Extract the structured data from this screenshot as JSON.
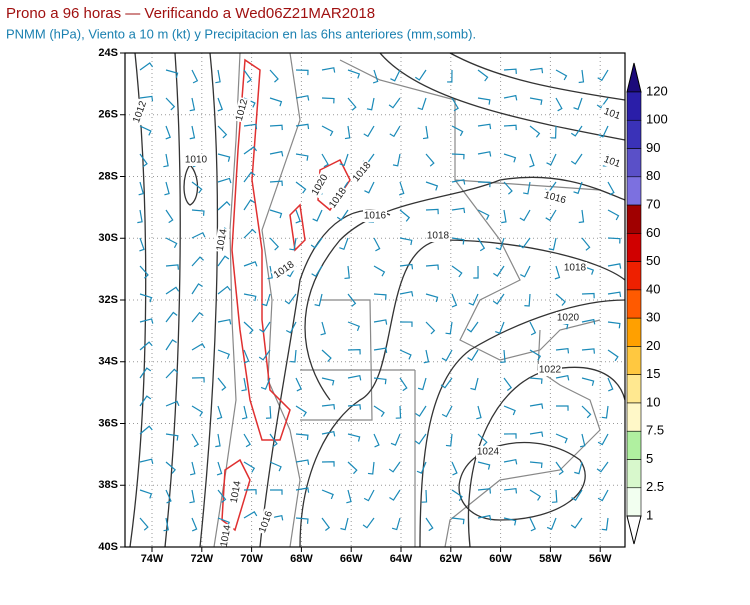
{
  "header": {
    "title": "Prono a 96 horas — Verificando a Wed06Z21MAR2018",
    "subtitle": "PNMM (hPa), Viento a 10 m (kt) y Precipitacion en las 6hs anteriores (mm,somb)."
  },
  "map": {
    "lat_labels": [
      "24S",
      "26S",
      "28S",
      "30S",
      "32S",
      "34S",
      "36S",
      "38S",
      "40S"
    ],
    "lon_labels": [
      "74W",
      "72W",
      "70W",
      "68W",
      "66W",
      "64W",
      "62W",
      "60W",
      "58W",
      "56W"
    ],
    "contour_labels": [
      "1012",
      "1012",
      "1010",
      "1014",
      "1020",
      "1018",
      "1018",
      "1016",
      "1018",
      "1016",
      "1018",
      "1018",
      "1020",
      "1022",
      "1024",
      "1014",
      "1016",
      "1014",
      "101",
      "101"
    ]
  },
  "colorbar": {
    "labels": [
      "120",
      "100",
      "90",
      "80",
      "70",
      "60",
      "50",
      "40",
      "30",
      "20",
      "15",
      "10",
      "7.5",
      "5",
      "2.5",
      "1"
    ],
    "colors": [
      "#1c0a7a",
      "#2a1ea8",
      "#3a32b8",
      "#5a50c8",
      "#7c70e0",
      "#a00000",
      "#d00000",
      "#ee2000",
      "#ff5a00",
      "#ffa000",
      "#ffc840",
      "#ffe890",
      "#fff8c8",
      "#b0f0a0",
      "#d8f8cc",
      "#f2fff0",
      "#ffffff"
    ]
  }
}
